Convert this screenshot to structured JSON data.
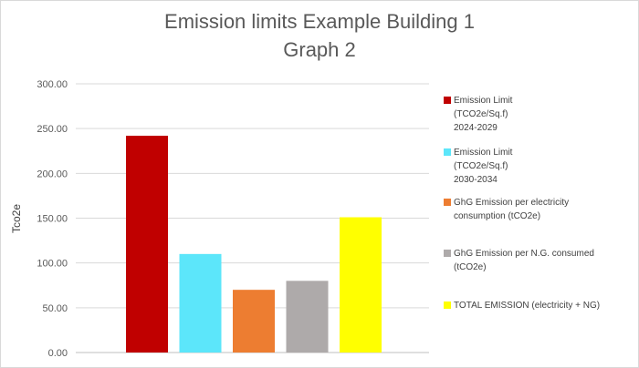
{
  "chart_data": {
    "type": "bar",
    "title": "Emission limits Example Building 1",
    "subtitle": "Graph 2",
    "ylabel": "Tco2e",
    "xlabel": "",
    "ylim": [
      0,
      300
    ],
    "yticks": [
      "0.00",
      "50.00",
      "100.00",
      "150.00",
      "200.00",
      "250.00",
      "300.00"
    ],
    "grid": true,
    "legend_position": "right",
    "series": [
      {
        "name": "Emission Limit\n(TCO2e/Sq.f)\n2024-2029",
        "value": 242,
        "color": "#c00000"
      },
      {
        "name": "Emission Limit\n(TCO2e/Sq.f)\n2030-2034",
        "value": 110,
        "color": "#5ce6fa"
      },
      {
        "name": "GhG Emission per electricity\nconsumption (tCO2e)",
        "value": 70,
        "color": "#ed7d31"
      },
      {
        "name": "GhG Emission per N.G. consumed\n(tCO2e)",
        "value": 80,
        "color": "#aeaaaa"
      },
      {
        "name": "TOTAL EMISSION (electricity + NG)",
        "value": 151,
        "color": "#ffff00"
      }
    ]
  }
}
